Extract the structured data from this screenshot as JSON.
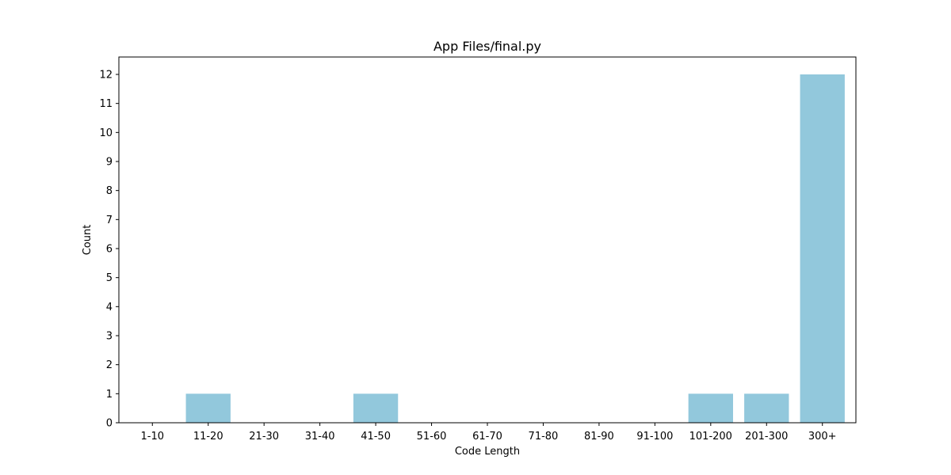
{
  "chart_data": {
    "type": "bar",
    "title": "App Files/final.py",
    "xlabel": "Code Length",
    "ylabel": "Count",
    "categories": [
      "1-10",
      "11-20",
      "21-30",
      "31-40",
      "41-50",
      "51-60",
      "61-70",
      "71-80",
      "81-90",
      "91-100",
      "101-200",
      "201-300",
      "300+"
    ],
    "values": [
      0,
      1,
      0,
      0,
      1,
      0,
      0,
      0,
      0,
      0,
      1,
      1,
      12
    ],
    "ylim": [
      0,
      12.6
    ],
    "yticks": [
      0,
      1,
      2,
      3,
      4,
      5,
      6,
      7,
      8,
      9,
      10,
      11,
      12
    ],
    "grid": false,
    "legend": "none",
    "bar_color": "#92c8dc"
  }
}
